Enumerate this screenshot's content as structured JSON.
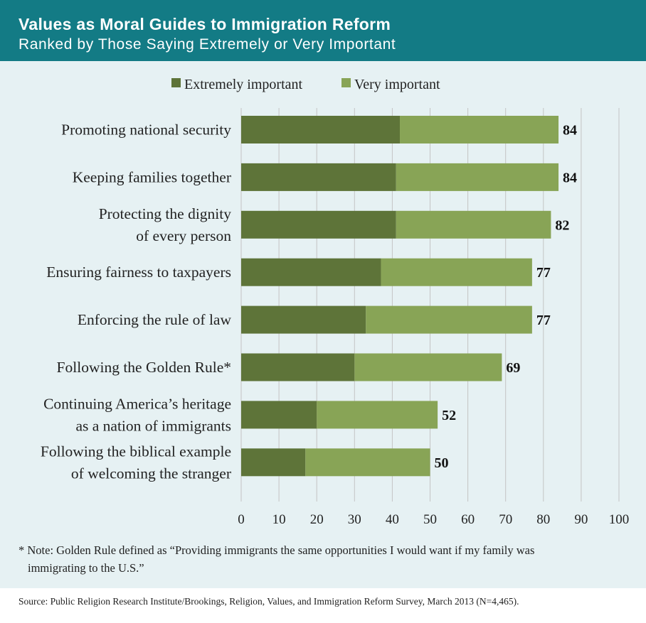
{
  "header": {
    "title": "Values as Moral Guides to Immigration Reform",
    "subtitle": "Ranked by Those Saying Extremely or Very Important"
  },
  "colors": {
    "header_bg": "#137b85",
    "panel_bg": "#e6f1f3",
    "extremely": "#5e7439",
    "very": "#88a456",
    "grid": "#c4c4c4"
  },
  "chart_data": {
    "type": "bar",
    "orientation": "horizontal",
    "stacked": true,
    "categories": [
      [
        "Promoting national security"
      ],
      [
        "Keeping families together"
      ],
      [
        "Protecting the dignity",
        "of every person"
      ],
      [
        "Ensuring fairness to taxpayers"
      ],
      [
        "Enforcing the rule of law"
      ],
      [
        "Following the Golden Rule*"
      ],
      [
        "Continuing America’s heritage",
        "as a nation of immigrants"
      ],
      [
        "Following the biblical example",
        "of welcoming the stranger"
      ]
    ],
    "series": [
      {
        "name": "Extremely important",
        "values": [
          42,
          41,
          41,
          37,
          33,
          30,
          20,
          17
        ]
      },
      {
        "name": "Very important",
        "values": [
          42,
          43,
          41,
          40,
          44,
          39,
          32,
          33
        ]
      }
    ],
    "totals": [
      "84",
      "84",
      "82",
      "77",
      "77",
      "69",
      "52",
      "50"
    ],
    "xlim": [
      0,
      100
    ],
    "xticks": [
      "0",
      "10",
      "20",
      "30",
      "40",
      "50",
      "60",
      "70",
      "80",
      "90",
      "100"
    ],
    "grid": true,
    "legend": "top-center"
  },
  "note": {
    "line1": "* Note: Golden Rule defined as “Providing immigrants the same opportunities I would want if my family was",
    "line2": "immigrating to the U.S.”"
  },
  "source": "Source: Public Religion Research Institute/Brookings, Religion, Values, and Immigration Reform Survey, March 2013 (N=4,465)."
}
